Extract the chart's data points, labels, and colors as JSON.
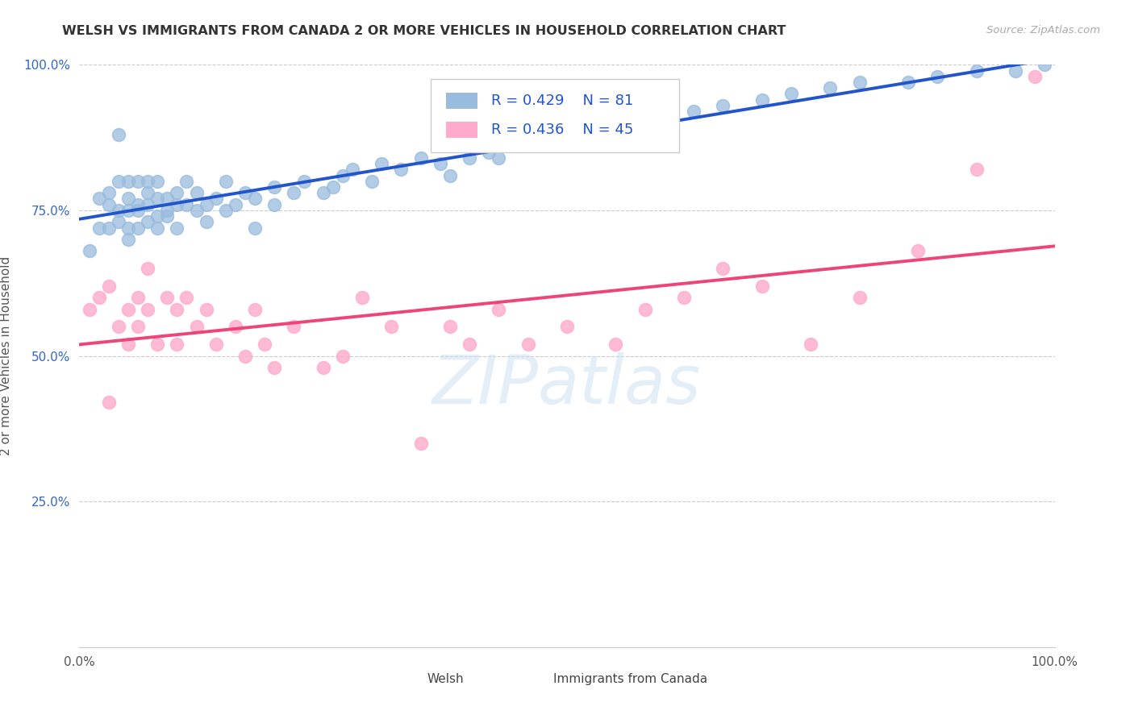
{
  "title": "WELSH VS IMMIGRANTS FROM CANADA 2 OR MORE VEHICLES IN HOUSEHOLD CORRELATION CHART",
  "source": "Source: ZipAtlas.com",
  "ylabel": "2 or more Vehicles in Household",
  "xlim": [
    0,
    1.0
  ],
  "ylim": [
    0,
    1.0
  ],
  "ytick_positions": [
    0.0,
    0.25,
    0.5,
    0.75,
    1.0
  ],
  "ytick_labels": [
    "",
    "25.0%",
    "50.0%",
    "75.0%",
    "100.0%"
  ],
  "xtick_positions": [
    0.0,
    1.0
  ],
  "xtick_labels": [
    "0.0%",
    "100.0%"
  ],
  "grid_color": "#cccccc",
  "background_color": "#ffffff",
  "welsh_color": "#99bbdd",
  "immigrants_color": "#ffaacc",
  "welsh_line_color": "#2255cc",
  "immigrants_line_color": "#ee4477",
  "welsh_R": 0.429,
  "welsh_N": 81,
  "immigrants_R": 0.436,
  "immigrants_N": 45,
  "legend_text_color": "#2255cc",
  "watermark": "ZIPatlas",
  "watermark_color": "#ccddeebb",
  "title_color": "#333333",
  "source_color": "#aaaaaa",
  "welsh_x": [
    0.01,
    0.02,
    0.02,
    0.03,
    0.03,
    0.03,
    0.04,
    0.04,
    0.04,
    0.04,
    0.05,
    0.05,
    0.05,
    0.05,
    0.05,
    0.06,
    0.06,
    0.06,
    0.06,
    0.07,
    0.07,
    0.07,
    0.07,
    0.08,
    0.08,
    0.08,
    0.08,
    0.09,
    0.09,
    0.09,
    0.1,
    0.1,
    0.1,
    0.11,
    0.11,
    0.12,
    0.12,
    0.13,
    0.13,
    0.14,
    0.15,
    0.15,
    0.16,
    0.17,
    0.18,
    0.18,
    0.2,
    0.2,
    0.22,
    0.23,
    0.25,
    0.26,
    0.27,
    0.28,
    0.3,
    0.31,
    0.33,
    0.35,
    0.37,
    0.38,
    0.4,
    0.42,
    0.43,
    0.45,
    0.47,
    0.5,
    0.52,
    0.55,
    0.58,
    0.6,
    0.63,
    0.66,
    0.7,
    0.73,
    0.77,
    0.8,
    0.85,
    0.88,
    0.92,
    0.96,
    0.99
  ],
  "welsh_y": [
    0.68,
    0.72,
    0.77,
    0.76,
    0.78,
    0.72,
    0.73,
    0.8,
    0.75,
    0.88,
    0.77,
    0.72,
    0.75,
    0.8,
    0.7,
    0.76,
    0.72,
    0.8,
    0.75,
    0.78,
    0.73,
    0.76,
    0.8,
    0.77,
    0.74,
    0.8,
    0.72,
    0.77,
    0.75,
    0.74,
    0.76,
    0.72,
    0.78,
    0.76,
    0.8,
    0.75,
    0.78,
    0.73,
    0.76,
    0.77,
    0.75,
    0.8,
    0.76,
    0.78,
    0.77,
    0.72,
    0.79,
    0.76,
    0.78,
    0.8,
    0.78,
    0.79,
    0.81,
    0.82,
    0.8,
    0.83,
    0.82,
    0.84,
    0.83,
    0.81,
    0.84,
    0.85,
    0.84,
    0.86,
    0.87,
    0.87,
    0.88,
    0.89,
    0.9,
    0.91,
    0.92,
    0.93,
    0.94,
    0.95,
    0.96,
    0.97,
    0.97,
    0.98,
    0.99,
    0.99,
    1.0
  ],
  "immigrants_x": [
    0.01,
    0.02,
    0.03,
    0.03,
    0.04,
    0.05,
    0.05,
    0.06,
    0.06,
    0.07,
    0.07,
    0.08,
    0.09,
    0.1,
    0.1,
    0.11,
    0.12,
    0.13,
    0.14,
    0.16,
    0.17,
    0.18,
    0.19,
    0.2,
    0.22,
    0.25,
    0.27,
    0.29,
    0.32,
    0.35,
    0.38,
    0.4,
    0.43,
    0.46,
    0.5,
    0.55,
    0.58,
    0.62,
    0.66,
    0.7,
    0.75,
    0.8,
    0.86,
    0.92,
    0.98
  ],
  "immigrants_y": [
    0.58,
    0.6,
    0.42,
    0.62,
    0.55,
    0.58,
    0.52,
    0.6,
    0.55,
    0.58,
    0.65,
    0.52,
    0.6,
    0.58,
    0.52,
    0.6,
    0.55,
    0.58,
    0.52,
    0.55,
    0.5,
    0.58,
    0.52,
    0.48,
    0.55,
    0.48,
    0.5,
    0.6,
    0.55,
    0.35,
    0.55,
    0.52,
    0.58,
    0.52,
    0.55,
    0.52,
    0.58,
    0.6,
    0.65,
    0.62,
    0.52,
    0.6,
    0.68,
    0.82,
    0.98
  ]
}
